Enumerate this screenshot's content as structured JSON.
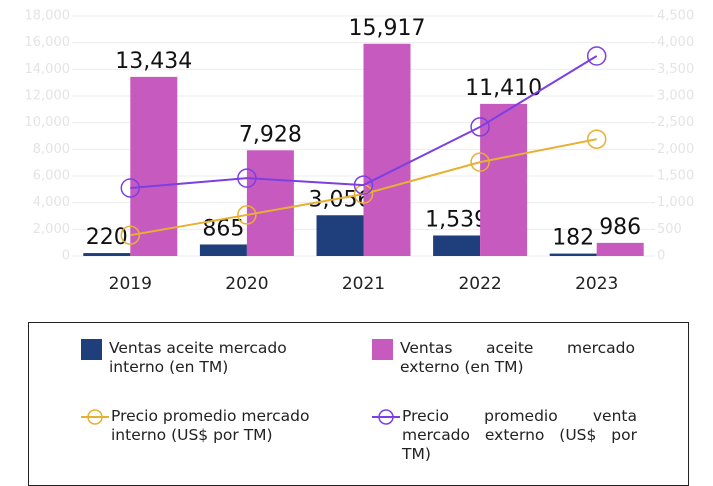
{
  "chart_data": {
    "type": "bar",
    "categories": [
      "2019",
      "2020",
      "2021",
      "2022",
      "2023"
    ],
    "series": [
      {
        "name": "Ventas aceite mercado interno (en TM)",
        "type": "bar",
        "color": "#1f3e7c",
        "values": [
          220,
          865,
          3056,
          1539,
          182
        ],
        "value_labels": [
          "220",
          "865",
          "3,056",
          "1,539",
          "182"
        ]
      },
      {
        "name": "Ventas aceite mercado externo (en TM)",
        "type": "bar",
        "color": "#c65abf",
        "values": [
          13434,
          7928,
          15917,
          11410,
          986
        ],
        "value_labels": [
          "13,434",
          "7,928",
          "15,917",
          "11,410",
          "986"
        ]
      },
      {
        "name": "Precio promedio mercado interno (US$ por TM)",
        "type": "line",
        "axis": "y2",
        "color": "#e8b030",
        "values": [
          390,
          770,
          1160,
          1760,
          2190
        ]
      },
      {
        "name": "Precio promedio venta mercado externo (US$ por TM)",
        "type": "line",
        "axis": "y2",
        "color": "#7b3fe4",
        "values": [
          1275,
          1460,
          1330,
          2420,
          3750
        ]
      }
    ],
    "ylim": [
      0,
      18000
    ],
    "yticks": [
      0,
      {
        "value": 2000,
        "label": "2,000"
      },
      {
        "value": 4000,
        "label": "4,000"
      },
      {
        "value": 6000,
        "label": "6,000"
      },
      {
        "value": 8000,
        "label": "8,000"
      },
      {
        "value": 10000,
        "label": "10,000"
      },
      {
        "value": 12000,
        "label": "12,000"
      },
      {
        "value": 14000,
        "label": "14,000"
      },
      {
        "value": 16000,
        "label": "16,000"
      },
      {
        "value": 18000,
        "label": "18,000"
      }
    ],
    "y2lim": [
      0,
      4500
    ],
    "y2ticks": [
      0,
      500,
      {
        "value": 1000,
        "label": "1,000"
      },
      {
        "value": 1500,
        "label": "1,500"
      },
      {
        "value": 2000,
        "label": "2,000"
      },
      {
        "value": 2500,
        "label": "2,500"
      },
      {
        "value": 3000,
        "label": "3,000"
      },
      {
        "value": 3500,
        "label": "3,500"
      },
      {
        "value": 4000,
        "label": "4,000"
      },
      {
        "value": 4500,
        "label": "4,500"
      }
    ],
    "grid": true
  }
}
